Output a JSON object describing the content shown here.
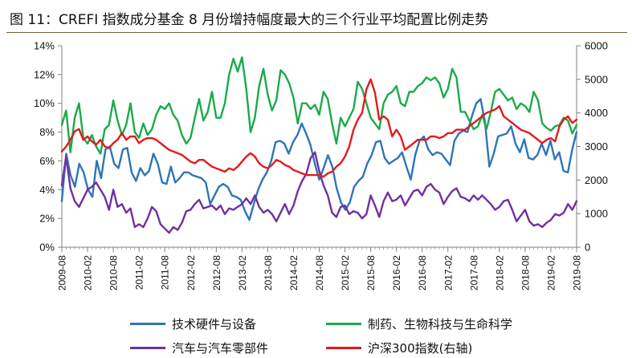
{
  "figure": {
    "title": "图 11：CREFI 指数成分基金 8 月份增持幅度最大的三个行业平均配置比例走势"
  },
  "colors": {
    "tech": "#2e75b6",
    "pharma": "#1aaa4a",
    "auto": "#7030a0",
    "hs300": "#e31a1c",
    "axis": "#808080",
    "rule": "#7a5c36"
  },
  "chart_data": {
    "type": "line",
    "title": "",
    "xlabel": "",
    "ylabel": "",
    "y2label": "",
    "x_ticks": [
      "2009-08",
      "2010-02",
      "2010-08",
      "2011-02",
      "2011-08",
      "2012-02",
      "2012-08",
      "2013-02",
      "2013-08",
      "2014-02",
      "2014-08",
      "2015-02",
      "2015-08",
      "2016-02",
      "2016-08",
      "2017-02",
      "2017-08",
      "2018-02",
      "2018-08",
      "2019-02",
      "2019-08"
    ],
    "y_left": {
      "min": 0,
      "max": 14,
      "ticks": [
        "0%",
        "2%",
        "4%",
        "6%",
        "8%",
        "10%",
        "12%",
        "14%"
      ]
    },
    "y_right": {
      "min": 0,
      "max": 6000,
      "ticks": [
        "0",
        "1000",
        "2000",
        "3000",
        "4000",
        "5000",
        "6000"
      ]
    },
    "grid": false,
    "legend_position": "bottom",
    "x_start": "2009-08",
    "x_end": "2019-08",
    "series": [
      {
        "key": "tech",
        "name": "技术硬件与设备",
        "axis": "left",
        "values": [
          3.2,
          6.5,
          5.0,
          4.2,
          5.8,
          5.2,
          4.0,
          3.5,
          6.0,
          4.8,
          6.8,
          7.0,
          5.8,
          5.5,
          6.8,
          6.9,
          5.2,
          4.6,
          5.5,
          5.0,
          5.3,
          6.5,
          5.8,
          4.5,
          4.4,
          5.6,
          4.5,
          4.8,
          5.2,
          5.2,
          5.0,
          4.9,
          4.8,
          4.5,
          3.0,
          3.6,
          4.2,
          4.4,
          4.2,
          3.6,
          3.5,
          3.3,
          2.5,
          1.9,
          3.0,
          4.0,
          4.7,
          5.2,
          6.0,
          7.3,
          7.4,
          7.2,
          6.5,
          7.3,
          7.8,
          8.6,
          7.9,
          7.1,
          5.8,
          4.7,
          5.5,
          6.4,
          5.6,
          4.1,
          3.1,
          2.6,
          3.1,
          4.2,
          4.6,
          4.9,
          5.8,
          6.4,
          7.3,
          7.4,
          6.2,
          5.8,
          6.0,
          6.2,
          6.6,
          5.6,
          4.7,
          6.4,
          7.4,
          7.7,
          6.8,
          6.4,
          6.6,
          6.5,
          6.1,
          5.7,
          7.4,
          7.9,
          8.1,
          8.0,
          9.1,
          10.0,
          10.3,
          8.7,
          5.6,
          6.5,
          7.7,
          7.8,
          7.9,
          8.4,
          7.2,
          6.6,
          7.5,
          6.2,
          6.1,
          6.4,
          7.2,
          6.4,
          7.4,
          6.1,
          6.6,
          5.3,
          5.2,
          6.8,
          8.0
        ]
      },
      {
        "key": "pharma",
        "name": "制药、生物科技与生命科学",
        "axis": "left",
        "values": [
          8.5,
          9.5,
          6.6,
          9.0,
          10.0,
          7.6,
          7.2,
          7.8,
          7.0,
          6.5,
          8.2,
          8.5,
          10.2,
          8.8,
          7.8,
          8.5,
          10.0,
          8.0,
          7.6,
          8.6,
          7.8,
          8.2,
          9.2,
          9.8,
          9.6,
          10.0,
          9.2,
          8.8,
          7.8,
          7.2,
          7.6,
          9.0,
          10.3,
          8.8,
          9.4,
          10.8,
          9.0,
          9.0,
          10.0,
          12.0,
          13.1,
          12.2,
          13.2,
          11.0,
          8.0,
          9.0,
          11.2,
          12.4,
          10.6,
          9.5,
          10.2,
          12.3,
          12.0,
          11.4,
          10.4,
          8.6,
          10.0,
          10.0,
          9.6,
          9.9,
          9.2,
          10.8,
          10.3,
          8.6,
          7.2,
          9.0,
          8.4,
          9.0,
          9.6,
          11.5,
          11.0,
          10.0,
          9.0,
          8.6,
          8.2,
          10.0,
          10.6,
          10.8,
          11.2,
          10.0,
          9.8,
          10.8,
          10.8,
          11.2,
          11.4,
          11.8,
          11.6,
          11.8,
          11.4,
          10.4,
          11.0,
          12.4,
          11.8,
          9.4,
          9.4,
          8.8,
          8.2,
          8.4,
          9.2,
          8.2,
          9.4,
          10.8,
          11.0,
          10.6,
          10.2,
          10.4,
          9.6,
          10.0,
          9.8,
          9.4,
          10.8,
          10.2,
          8.6,
          8.3,
          8.1,
          8.4,
          8.5,
          9.0,
          8.8,
          7.9,
          8.5
        ]
      },
      {
        "key": "auto",
        "name": "汽车与汽车零部件",
        "axis": "left",
        "values": [
          4.3,
          6.3,
          4.1,
          3.2,
          2.8,
          3.4,
          4.0,
          4.2,
          4.5,
          4.0,
          3.5,
          2.6,
          4.0,
          2.8,
          3.0,
          2.4,
          2.7,
          1.4,
          1.6,
          1.4,
          2.0,
          2.8,
          2.5,
          1.6,
          1.3,
          1.0,
          1.4,
          1.2,
          1.7,
          2.5,
          2.6,
          3.0,
          3.3,
          2.7,
          2.8,
          2.9,
          2.6,
          2.9,
          2.3,
          2.7,
          2.6,
          2.8,
          3.0,
          3.4,
          3.0,
          3.6,
          2.8,
          2.4,
          2.6,
          2.3,
          1.8,
          2.4,
          3.0,
          2.3,
          2.9,
          3.9,
          4.6,
          5.1,
          6.2,
          6.6,
          5.3,
          4.3,
          3.6,
          2.4,
          2.1,
          2.8,
          2.9,
          2.3,
          2.5,
          2.4,
          2.0,
          2.3,
          3.6,
          2.9,
          2.1,
          3.2,
          3.8,
          3.2,
          3.3,
          3.6,
          2.9,
          3.4,
          3.9,
          4.0,
          3.6,
          4.2,
          4.4,
          4.0,
          3.8,
          3.0,
          3.5,
          3.9,
          4.1,
          3.5,
          3.4,
          3.2,
          3.6,
          3.3,
          3.6,
          3.3,
          3.0,
          2.6,
          2.8,
          3.2,
          3.3,
          2.6,
          1.8,
          2.2,
          2.6,
          1.8,
          1.5,
          1.6,
          1.4,
          1.7,
          1.9,
          2.3,
          2.2,
          2.4,
          3.0,
          2.6,
          3.2
        ]
      },
      {
        "key": "hs300",
        "name": "沪深300指数(右轴)",
        "axis": "right",
        "values": [
          2850,
          3000,
          3200,
          3450,
          3520,
          3200,
          3300,
          3150,
          3050,
          3200,
          3000,
          2950,
          3100,
          3200,
          3400,
          3200,
          3300,
          3300,
          3100,
          3200,
          3250,
          3250,
          3200,
          3100,
          3000,
          2900,
          2850,
          2800,
          2750,
          2650,
          2550,
          2500,
          2600,
          2600,
          2500,
          2400,
          2350,
          2300,
          2250,
          2350,
          2300,
          2400,
          2550,
          2700,
          2800,
          2700,
          2500,
          2400,
          2350,
          2450,
          2600,
          2550,
          2450,
          2400,
          2300,
          2250,
          2200,
          2150,
          2150,
          2150,
          2150,
          2100,
          2200,
          2250,
          2400,
          2500,
          2700,
          3000,
          3500,
          3800,
          4000,
          4700,
          5000,
          4600,
          3800,
          3900,
          3800,
          3300,
          3500,
          3300,
          2900,
          3000,
          3100,
          3200,
          3200,
          3200,
          3300,
          3300,
          3250,
          3300,
          3400,
          3400,
          3500,
          3500,
          3500,
          3600,
          3700,
          3800,
          3900,
          4000,
          4050,
          4100,
          4200,
          3900,
          3800,
          3700,
          3600,
          3500,
          3450,
          3400,
          3300,
          3200,
          3100,
          3200,
          3250,
          3150,
          3600,
          3800,
          3900,
          3700,
          3800
        ]
      }
    ]
  }
}
